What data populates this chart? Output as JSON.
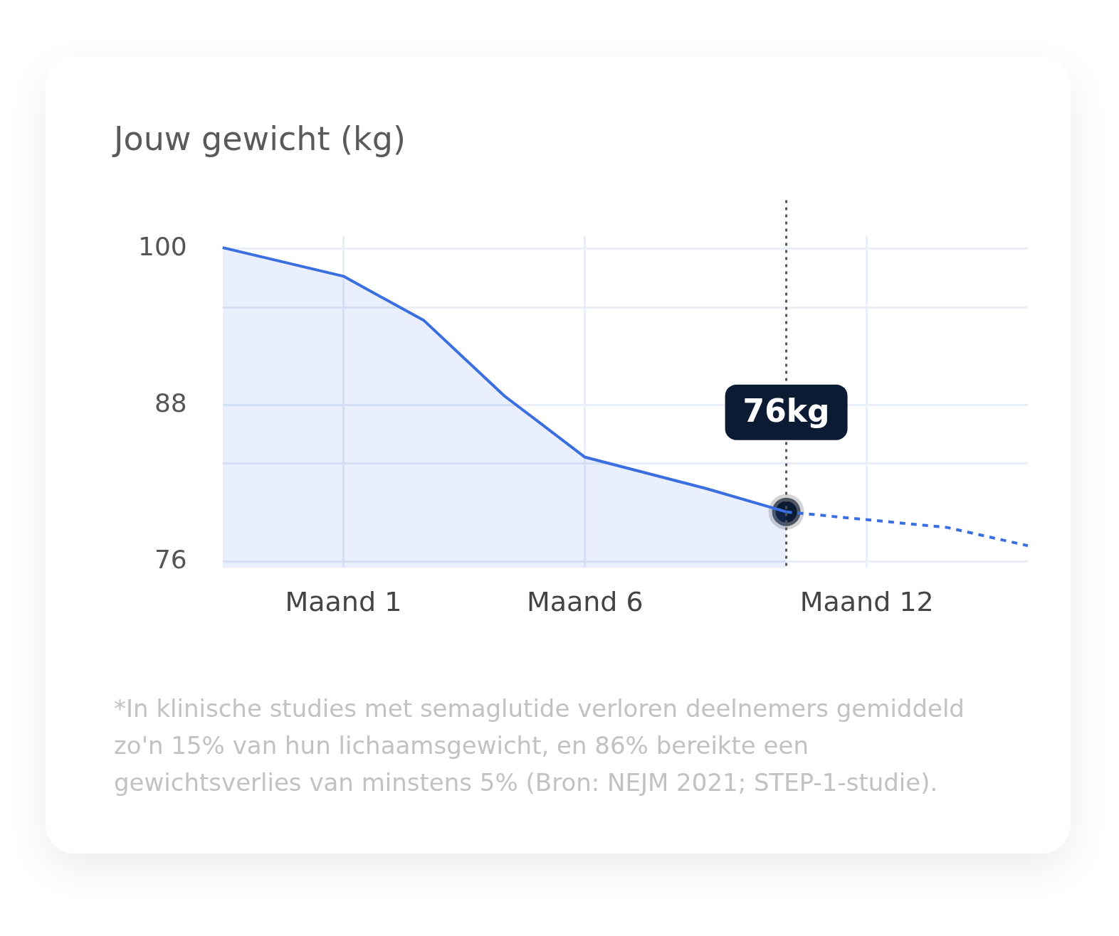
{
  "chart_data": {
    "type": "area",
    "title": "Jouw gewicht (kg)",
    "categories": [
      null,
      null,
      null,
      "Maand 1",
      null,
      null,
      null,
      null,
      null,
      "Maand 6",
      null,
      null,
      null,
      null,
      null,
      null,
      "Maand 12",
      null,
      null,
      null,
      null
    ],
    "ylim": [
      75.5,
      101
    ],
    "yticks": [
      76,
      {
        "value": 83.5,
        "label": null
      },
      88,
      {
        "value": 95.5,
        "label": null
      },
      100
    ],
    "grid": true,
    "legend": false,
    "series": [
      {
        "color": "#3b6fe0",
        "values": [
          100.1,
          null,
          null,
          97.9,
          null,
          94.5,
          null,
          88.7,
          null,
          84.0,
          null,
          null,
          81.6,
          null,
          79.8,
          null,
          null,
          null,
          null,
          null,
          null
        ]
      },
      {
        "type": "line",
        "color": "#3b6fe0",
        "line_style": "dashed",
        "values": [
          null,
          null,
          null,
          null,
          null,
          null,
          null,
          null,
          null,
          null,
          null,
          null,
          null,
          null,
          79.8,
          null,
          null,
          null,
          78.6,
          null,
          77.2
        ]
      },
      {
        "type": "scatter",
        "color": "#0b1b33",
        "marker": "circle",
        "values": [
          null,
          null,
          null,
          null,
          null,
          null,
          null,
          null,
          null,
          null,
          null,
          null,
          null,
          null,
          79.8,
          null,
          null,
          null,
          null,
          null,
          null
        ]
      }
    ],
    "annotations": [
      {
        "text": "76kg",
        "y": 79.8
      },
      "*In klinische studies met semaglutide verloren deelnemers gemiddeld zo'n 15% van hun lichaamsgewicht, en 86% bereikte een gewichtsverlies van minstens 5% (Bron: NEJM 2021; STEP-1-studie)."
    ]
  }
}
